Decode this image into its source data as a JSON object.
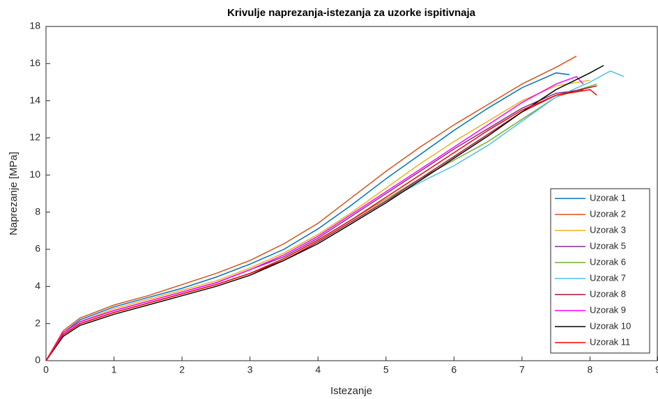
{
  "chart_data": {
    "type": "line",
    "title": "Krivulje naprezanja-istezanja za uzorke ispitivnaja",
    "x_label": "Istezanje",
    "y_label": "Naprezanje [MPa]",
    "xlim": [
      0,
      9
    ],
    "ylim": [
      0,
      18
    ],
    "xticks": [
      0,
      1,
      2,
      3,
      4,
      5,
      6,
      7,
      8,
      9
    ],
    "yticks": [
      0,
      2,
      4,
      6,
      8,
      10,
      12,
      14,
      16,
      18
    ],
    "legend_position": "lower right",
    "series": [
      {
        "name": "Uzorak 1",
        "color": "#0072BD",
        "x": [
          0,
          0.25,
          0.5,
          1,
          1.5,
          2,
          2.5,
          3,
          3.5,
          4,
          4.5,
          5,
          5.5,
          6,
          6.5,
          7,
          7.5,
          7.7
        ],
        "values": [
          0,
          1.5,
          2.2,
          2.9,
          3.4,
          3.9,
          4.5,
          5.2,
          6.0,
          7.1,
          8.4,
          9.8,
          11.1,
          12.4,
          13.6,
          14.7,
          15.5,
          15.4
        ]
      },
      {
        "name": "Uzorak 2",
        "color": "#D95319",
        "x": [
          0,
          0.25,
          0.5,
          1,
          1.5,
          2,
          2.5,
          3,
          3.5,
          4,
          4.5,
          5,
          5.5,
          6,
          6.5,
          7,
          7.5,
          7.8
        ],
        "values": [
          0,
          1.6,
          2.3,
          3.0,
          3.5,
          4.1,
          4.7,
          5.4,
          6.3,
          7.4,
          8.8,
          10.2,
          11.5,
          12.7,
          13.8,
          14.9,
          15.8,
          16.4
        ]
      },
      {
        "name": "Uzorak 3",
        "color": "#EDB120",
        "x": [
          0,
          0.25,
          0.5,
          1,
          1.5,
          2,
          2.5,
          3,
          3.5,
          4,
          4.5,
          5,
          5.5,
          6,
          6.5,
          7,
          7.5,
          8.0
        ],
        "values": [
          0,
          1.5,
          2.1,
          2.8,
          3.3,
          3.8,
          4.3,
          5.0,
          5.8,
          6.8,
          8.0,
          9.3,
          10.6,
          11.8,
          12.9,
          14.0,
          14.8,
          15.1
        ]
      },
      {
        "name": "Uzorak 5",
        "color": "#7E2F8E",
        "x": [
          0,
          0.25,
          0.5,
          1,
          1.5,
          2,
          2.5,
          3,
          3.5,
          4,
          4.5,
          5,
          5.5,
          6,
          6.5,
          7,
          7.5,
          7.9
        ],
        "values": [
          0,
          1.5,
          2.1,
          2.7,
          3.2,
          3.7,
          4.2,
          4.9,
          5.6,
          6.6,
          7.8,
          9.0,
          10.2,
          11.4,
          12.5,
          13.6,
          14.4,
          14.6
        ]
      },
      {
        "name": "Uzorak 6",
        "color": "#77AC30",
        "x": [
          0,
          0.25,
          0.5,
          1,
          1.5,
          2,
          2.5,
          3,
          3.5,
          4,
          4.5,
          5,
          5.5,
          6,
          6.5,
          7,
          7.5,
          8.1
        ],
        "values": [
          0,
          1.4,
          2.0,
          2.6,
          3.1,
          3.6,
          4.1,
          4.7,
          5.5,
          6.5,
          7.6,
          8.7,
          9.8,
          10.8,
          11.8,
          13.0,
          14.2,
          14.9
        ]
      },
      {
        "name": "Uzorak 7",
        "color": "#4DBEEE",
        "x": [
          0,
          0.25,
          0.5,
          1,
          1.5,
          2,
          2.5,
          3,
          3.5,
          4,
          4.5,
          5,
          5.5,
          6,
          6.5,
          7,
          7.5,
          8.0,
          8.3,
          8.5
        ],
        "values": [
          0,
          1.4,
          2.0,
          2.6,
          3.1,
          3.6,
          4.1,
          4.7,
          5.4,
          6.4,
          7.5,
          8.6,
          9.6,
          10.5,
          11.6,
          12.9,
          14.2,
          15.0,
          15.6,
          15.3
        ]
      },
      {
        "name": "Uzorak 8",
        "color": "#A2142F",
        "x": [
          0,
          0.25,
          0.5,
          1,
          1.5,
          2,
          2.5,
          3,
          3.5,
          4,
          4.5,
          5,
          5.5,
          6,
          6.5,
          7,
          7.5,
          8.1
        ],
        "values": [
          0,
          1.4,
          2.0,
          2.6,
          3.1,
          3.6,
          4.1,
          4.7,
          5.4,
          6.4,
          7.5,
          8.6,
          9.8,
          11.0,
          12.2,
          13.4,
          14.3,
          14.8
        ]
      },
      {
        "name": "Uzorak 9",
        "color": "#FF00FF",
        "x": [
          0,
          0.25,
          0.5,
          1,
          1.5,
          2,
          2.5,
          3,
          3.5,
          4,
          4.5,
          5,
          5.5,
          6,
          6.5,
          7,
          7.5,
          7.8,
          7.9
        ],
        "values": [
          0,
          1.5,
          2.1,
          2.7,
          3.2,
          3.7,
          4.2,
          4.9,
          5.7,
          6.7,
          7.9,
          9.1,
          10.3,
          11.5,
          12.7,
          13.9,
          14.9,
          15.3,
          14.9
        ]
      },
      {
        "name": "Uzorak 10",
        "color": "#000000",
        "x": [
          0,
          0.25,
          0.5,
          1,
          1.5,
          2,
          2.5,
          3,
          3.5,
          4,
          4.5,
          5,
          5.5,
          6,
          6.5,
          7,
          7.5,
          8.0,
          8.2
        ],
        "values": [
          0,
          1.3,
          1.9,
          2.5,
          3.0,
          3.5,
          4.0,
          4.6,
          5.4,
          6.3,
          7.4,
          8.5,
          9.7,
          10.9,
          12.1,
          13.4,
          14.6,
          15.5,
          15.9
        ]
      },
      {
        "name": "Uzorak 11",
        "color": "#FF0000",
        "x": [
          0,
          0.25,
          0.5,
          1,
          1.5,
          2,
          2.5,
          3,
          3.5,
          4,
          4.5,
          5,
          5.5,
          6,
          6.5,
          7,
          7.5,
          8.0,
          8.1
        ],
        "values": [
          0,
          1.4,
          2.0,
          2.6,
          3.1,
          3.6,
          4.1,
          4.7,
          5.5,
          6.5,
          7.6,
          8.8,
          10.0,
          11.2,
          12.4,
          13.5,
          14.3,
          14.6,
          14.3
        ]
      }
    ]
  }
}
